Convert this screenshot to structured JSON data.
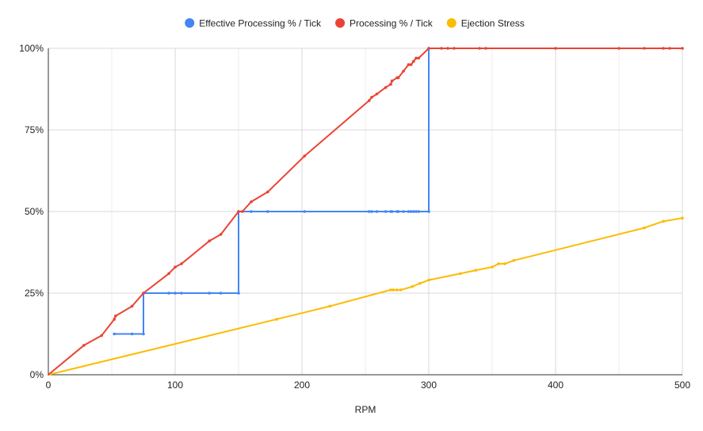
{
  "chart_data": {
    "type": "line",
    "title": "",
    "xlabel": "RPM",
    "ylabel": "",
    "xlim": [
      0,
      500
    ],
    "ylim": [
      0,
      100
    ],
    "x_ticks": [
      0,
      100,
      200,
      300,
      400,
      500
    ],
    "x_tick_labels": [
      "0",
      "100",
      "200",
      "300",
      "400",
      "500"
    ],
    "y_ticks": [
      0,
      25,
      50,
      75,
      100
    ],
    "y_tick_labels": [
      "0%",
      "25%",
      "50%",
      "75%",
      "100%"
    ],
    "grid": true,
    "legend_position": "top",
    "series": [
      {
        "name": "Effective Processing % / Tick",
        "color": "#4285f4",
        "points": [
          [
            52,
            12.5
          ],
          [
            66,
            12.5
          ],
          [
            75,
            12.5
          ],
          [
            75,
            25
          ],
          [
            95,
            25
          ],
          [
            100,
            25
          ],
          [
            105,
            25
          ],
          [
            127,
            25
          ],
          [
            136,
            25
          ],
          [
            150,
            25
          ],
          [
            150,
            50
          ],
          [
            160,
            50
          ],
          [
            173,
            50
          ],
          [
            202,
            50
          ],
          [
            253,
            50
          ],
          [
            255,
            50
          ],
          [
            259,
            50
          ],
          [
            266,
            50
          ],
          [
            270,
            50
          ],
          [
            271,
            50
          ],
          [
            275,
            50
          ],
          [
            276,
            50
          ],
          [
            280,
            50
          ],
          [
            284,
            50
          ],
          [
            286,
            50
          ],
          [
            288,
            50
          ],
          [
            290,
            50
          ],
          [
            292,
            50
          ],
          [
            300,
            50
          ],
          [
            300,
            100
          ]
        ]
      },
      {
        "name": "Processing % / Tick",
        "color": "#ea4335",
        "points": [
          [
            0,
            0
          ],
          [
            28,
            9
          ],
          [
            42,
            12
          ],
          [
            52,
            17
          ],
          [
            53,
            18
          ],
          [
            66,
            21
          ],
          [
            75,
            25
          ],
          [
            95,
            31
          ],
          [
            100,
            33
          ],
          [
            105,
            34
          ],
          [
            127,
            41
          ],
          [
            136,
            43
          ],
          [
            150,
            50
          ],
          [
            153,
            50
          ],
          [
            160,
            53
          ],
          [
            173,
            56
          ],
          [
            202,
            67
          ],
          [
            253,
            84
          ],
          [
            255,
            85
          ],
          [
            259,
            86
          ],
          [
            266,
            88
          ],
          [
            270,
            89
          ],
          [
            271,
            90
          ],
          [
            275,
            91
          ],
          [
            276,
            91
          ],
          [
            280,
            93
          ],
          [
            284,
            95
          ],
          [
            286,
            95
          ],
          [
            288,
            96
          ],
          [
            290,
            97
          ],
          [
            292,
            97
          ],
          [
            300,
            100
          ],
          [
            310,
            100
          ],
          [
            315,
            100
          ],
          [
            320,
            100
          ],
          [
            340,
            100
          ],
          [
            345,
            100
          ],
          [
            400,
            100
          ],
          [
            450,
            100
          ],
          [
            470,
            100
          ],
          [
            485,
            100
          ],
          [
            490,
            100
          ],
          [
            500,
            100
          ]
        ]
      },
      {
        "name": "Ejection Stress",
        "color": "#fbbc04",
        "points": [
          [
            0,
            0
          ],
          [
            180,
            17
          ],
          [
            222,
            21
          ],
          [
            270,
            26
          ],
          [
            272,
            26
          ],
          [
            275,
            26
          ],
          [
            278,
            26
          ],
          [
            287,
            27
          ],
          [
            293,
            28
          ],
          [
            300,
            29
          ],
          [
            325,
            31
          ],
          [
            337,
            32
          ],
          [
            350,
            33
          ],
          [
            355,
            34
          ],
          [
            360,
            34
          ],
          [
            367,
            35
          ],
          [
            470,
            45
          ],
          [
            485,
            47
          ],
          [
            500,
            48
          ]
        ]
      }
    ]
  }
}
